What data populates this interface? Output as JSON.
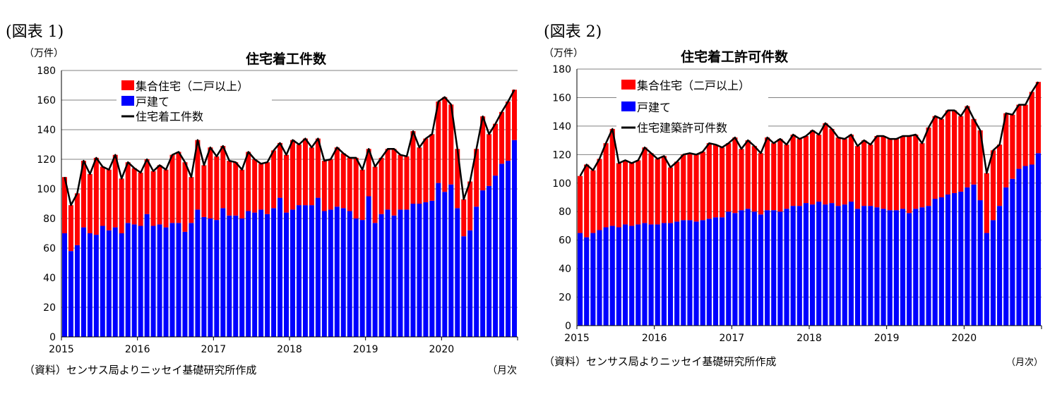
{
  "colors": {
    "multi": "#ff0000",
    "single": "#0000ff",
    "line": "#000000",
    "grid": "#808080"
  },
  "chart_data": [
    {
      "type": "bar",
      "stacked": true,
      "figure_label": "(図表 1)",
      "title": "住宅着工件数",
      "ylabel": "（万件）",
      "xlabel": "（月次",
      "source": "（資料）センサス局よりニッセイ基礎研究所作成",
      "ylim": [
        0,
        180
      ],
      "yticks": [
        0,
        20,
        40,
        60,
        80,
        100,
        120,
        140,
        160,
        180
      ],
      "xtick_labels": [
        "2015",
        "2016",
        "2017",
        "2018",
        "2019",
        "2020"
      ],
      "period": "2015-01 to 2020-12 monthly",
      "grid": true,
      "legend_position": "top-left",
      "legend": [
        "集合住宅（二戸以上）",
        "戸建て",
        "住宅着工件数"
      ],
      "single_family": [
        70,
        58,
        62,
        74,
        70,
        69,
        75,
        72,
        74,
        70,
        77,
        76,
        75,
        83,
        75,
        76,
        74,
        77,
        77,
        71,
        77,
        86,
        81,
        80,
        79,
        87,
        82,
        82,
        80,
        85,
        84,
        86,
        83,
        87,
        94,
        84,
        86,
        89,
        89,
        89,
        94,
        85,
        86,
        88,
        87,
        85,
        80,
        79,
        95,
        77,
        83,
        86,
        82,
        86,
        86,
        90,
        90,
        91,
        92,
        104,
        98,
        103,
        87,
        68,
        72,
        88,
        99,
        102,
        109,
        117,
        119,
        133
      ],
      "total": [
        108,
        89,
        97,
        119,
        110,
        121,
        115,
        113,
        123,
        107,
        118,
        114,
        111,
        120,
        112,
        116,
        113,
        123,
        125,
        118,
        108,
        133,
        116,
        128,
        122,
        129,
        119,
        118,
        113,
        125,
        120,
        117,
        118,
        126,
        131,
        123,
        133,
        130,
        134,
        128,
        134,
        119,
        120,
        128,
        124,
        121,
        121,
        113,
        127,
        115,
        121,
        127,
        127,
        123,
        122,
        139,
        128,
        134,
        137,
        159,
        162,
        157,
        127,
        93,
        105,
        127,
        149,
        137,
        144,
        152,
        159,
        167
      ]
    },
    {
      "type": "bar",
      "stacked": true,
      "figure_label": "(図表 2)",
      "title": "住宅着工許可件数",
      "ylabel": "（万件）",
      "xlabel": "（月次）",
      "source": "（資料）センサス局よりニッセイ基礎研究所作成",
      "ylim": [
        0,
        180
      ],
      "yticks": [
        0,
        20,
        40,
        60,
        80,
        100,
        120,
        140,
        160,
        180
      ],
      "xtick_labels": [
        "2015",
        "2016",
        "2017",
        "2018",
        "2019",
        "2020"
      ],
      "period": "2015-01 to 2020-12 monthly",
      "grid": true,
      "legend_position": "top-left",
      "legend": [
        "集合住宅（二戸以上）",
        "戸建て",
        "住宅建築許可件数"
      ],
      "single_family": [
        65,
        62,
        65,
        67,
        69,
        70,
        69,
        71,
        70,
        71,
        72,
        71,
        71,
        72,
        72,
        73,
        74,
        74,
        73,
        74,
        75,
        76,
        76,
        80,
        79,
        81,
        82,
        80,
        78,
        81,
        81,
        80,
        82,
        84,
        84,
        86,
        85,
        87,
        85,
        86,
        84,
        85,
        87,
        82,
        84,
        84,
        83,
        82,
        81,
        81,
        82,
        79,
        82,
        83,
        84,
        89,
        90,
        92,
        93,
        94,
        97,
        99,
        88,
        65,
        74,
        84,
        97,
        103,
        110,
        112,
        113,
        121
      ],
      "total": [
        105,
        113,
        109,
        117,
        128,
        138,
        114,
        116,
        114,
        116,
        125,
        121,
        117,
        119,
        111,
        115,
        120,
        121,
        120,
        122,
        128,
        127,
        125,
        128,
        132,
        124,
        130,
        126,
        121,
        132,
        128,
        131,
        127,
        134,
        131,
        133,
        137,
        134,
        142,
        138,
        132,
        131,
        134,
        126,
        130,
        127,
        133,
        133,
        131,
        131,
        133,
        133,
        134,
        128,
        139,
        147,
        145,
        151,
        151,
        147,
        154,
        145,
        137,
        107,
        123,
        127,
        149,
        148,
        155,
        155,
        164,
        171
      ]
    }
  ]
}
